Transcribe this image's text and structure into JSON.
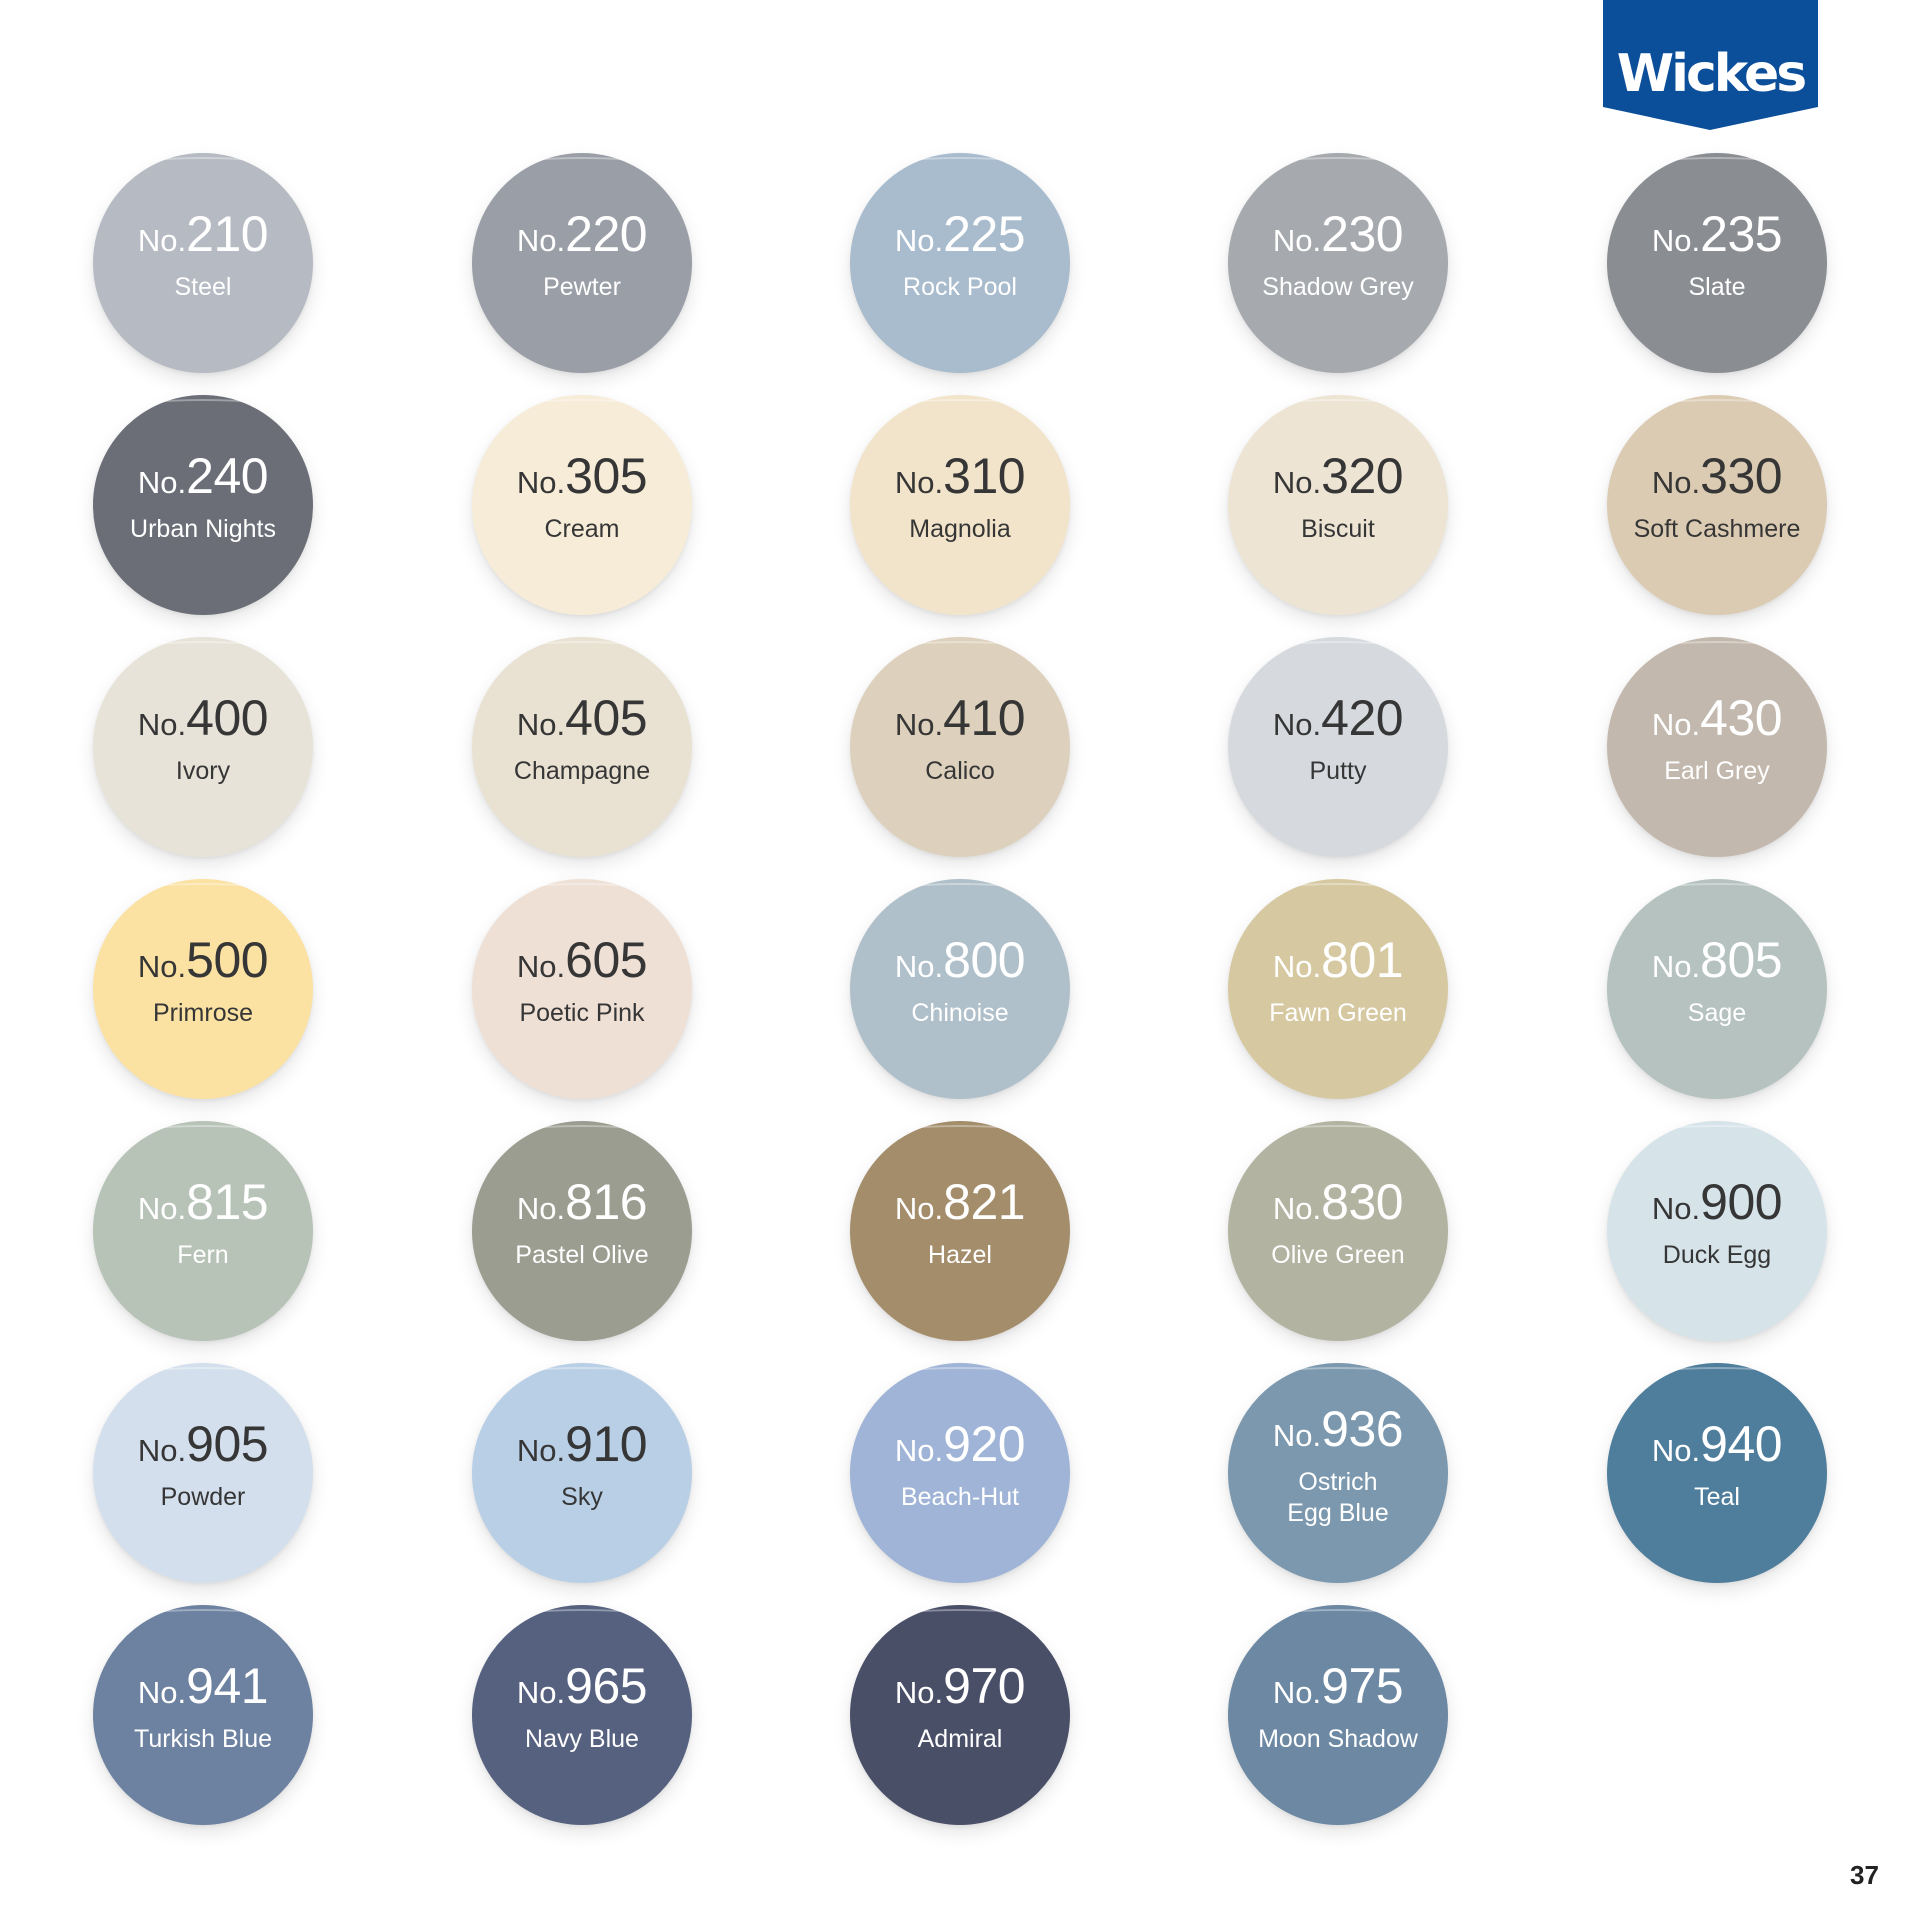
{
  "brand": {
    "logo_text": "Wickes",
    "color": "#0b4e99"
  },
  "number_prefix": "No.",
  "page_number": "37",
  "swatches": [
    {
      "number": "210",
      "name": "Steel",
      "color": "#b6bac2",
      "text": "light"
    },
    {
      "number": "220",
      "name": "Pewter",
      "color": "#9a9ea6",
      "text": "light"
    },
    {
      "number": "225",
      "name": "Rock Pool",
      "color": "#a9bccd",
      "text": "light"
    },
    {
      "number": "230",
      "name": "Shadow Grey",
      "color": "#a6a9ae",
      "text": "light"
    },
    {
      "number": "235",
      "name": "Slate",
      "color": "#8a8d92",
      "text": "light"
    },
    {
      "number": "240",
      "name": "Urban Nights",
      "color": "#6b6e77",
      "text": "light"
    },
    {
      "number": "305",
      "name": "Cream",
      "color": "#f6ecd7",
      "text": "dark"
    },
    {
      "number": "310",
      "name": "Magnolia",
      "color": "#f2e4ca",
      "text": "dark"
    },
    {
      "number": "320",
      "name": "Biscuit",
      "color": "#ede4d4",
      "text": "dark"
    },
    {
      "number": "330",
      "name": "Soft Cashmere",
      "color": "#dccbb3",
      "text": "dark"
    },
    {
      "number": "400",
      "name": "Ivory",
      "color": "#e8e3d9",
      "text": "dark"
    },
    {
      "number": "405",
      "name": "Champagne",
      "color": "#e9e2d2",
      "text": "dark"
    },
    {
      "number": "410",
      "name": "Calico",
      "color": "#ddd1bd",
      "text": "dark"
    },
    {
      "number": "420",
      "name": "Putty",
      "color": "#d6dadf",
      "text": "dark"
    },
    {
      "number": "430",
      "name": "Earl Grey",
      "color": "#c2b8ad",
      "text": "light"
    },
    {
      "number": "500",
      "name": "Primrose",
      "color": "#fbe2a2",
      "text": "dark"
    },
    {
      "number": "605",
      "name": "Poetic Pink",
      "color": "#efe0d6",
      "text": "dark"
    },
    {
      "number": "800",
      "name": "Chinoise",
      "color": "#b0c0ca",
      "text": "light"
    },
    {
      "number": "801",
      "name": "Fawn Green",
      "color": "#d6c9a1",
      "text": "light"
    },
    {
      "number": "805",
      "name": "Sage",
      "color": "#b5c2bf",
      "text": "light"
    },
    {
      "number": "815",
      "name": "Fern",
      "color": "#b8c3b8",
      "text": "light"
    },
    {
      "number": "816",
      "name": "Pastel Olive",
      "color": "#9a9d8f",
      "text": "light"
    },
    {
      "number": "821",
      "name": "Hazel",
      "color": "#a48d6b",
      "text": "light"
    },
    {
      "number": "830",
      "name": "Olive Green",
      "color": "#b3b3a1",
      "text": "light"
    },
    {
      "number": "900",
      "name": "Duck Egg",
      "color": "#d6e4ea",
      "text": "dark"
    },
    {
      "number": "905",
      "name": "Powder",
      "color": "#d3dfec",
      "text": "dark"
    },
    {
      "number": "910",
      "name": "Sky",
      "color": "#b9cfe6",
      "text": "dark"
    },
    {
      "number": "920",
      "name": "Beach-Hut",
      "color": "#9fb4d6",
      "text": "light"
    },
    {
      "number": "936",
      "name": "Ostrich\nEgg Blue",
      "color": "#7b98ae",
      "text": "light"
    },
    {
      "number": "940",
      "name": "Teal",
      "color": "#4f7d9c",
      "text": "light"
    },
    {
      "number": "941",
      "name": "Turkish Blue",
      "color": "#6d82a0",
      "text": "light"
    },
    {
      "number": "965",
      "name": "Navy Blue",
      "color": "#55617f",
      "text": "light"
    },
    {
      "number": "970",
      "name": "Admiral",
      "color": "#4a4f68",
      "text": "light"
    },
    {
      "number": "975",
      "name": "Moon Shadow",
      "color": "#6c88a3",
      "text": "light"
    }
  ]
}
